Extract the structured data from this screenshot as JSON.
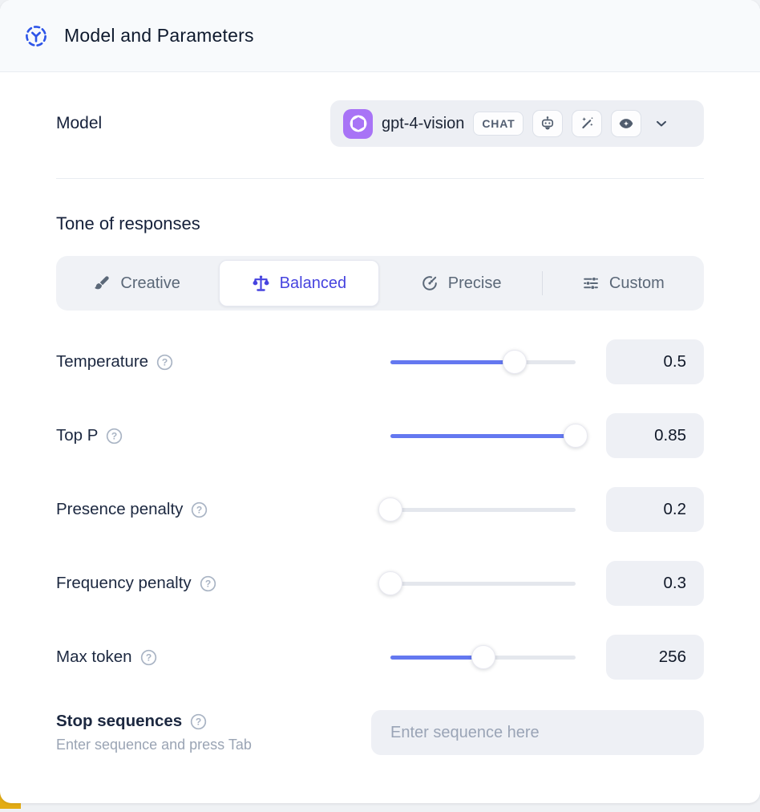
{
  "header": {
    "title": "Model and Parameters"
  },
  "model_row": {
    "label": "Model",
    "selected_model": "gpt-4-vision",
    "type_badge": "CHAT",
    "capability_icons": [
      "robot-icon",
      "magic-wand-icon",
      "eye-icon"
    ]
  },
  "tone": {
    "heading": "Tone of responses",
    "tabs": [
      {
        "label": "Creative",
        "icon": "paintbrush-icon",
        "selected": false
      },
      {
        "label": "Balanced",
        "icon": "balance-scale-icon",
        "selected": true
      },
      {
        "label": "Precise",
        "icon": "target-arrow-icon",
        "selected": false
      },
      {
        "label": "Custom",
        "icon": "sliders-icon",
        "selected": false
      }
    ]
  },
  "parameters": [
    {
      "label": "Temperature",
      "value": "0.5",
      "fill_pct": 67
    },
    {
      "label": "Top P",
      "value": "0.85",
      "fill_pct": 100
    },
    {
      "label": "Presence penalty",
      "value": "0.2",
      "fill_pct": 0
    },
    {
      "label": "Frequency penalty",
      "value": "0.3",
      "fill_pct": 0
    },
    {
      "label": "Max token",
      "value": "256",
      "fill_pct": 50
    }
  ],
  "stop_sequences": {
    "label": "Stop sequences",
    "hint": "Enter sequence and press Tab",
    "placeholder": "Enter sequence here"
  },
  "colors": {
    "slider_accent": "#6478f0",
    "selected_tab_indigo": "#4643df",
    "model_logo_purple": "#a873f6",
    "header_icon_blue": "#2e55e8",
    "control_bg": "#eef0f5",
    "corner_accent_yellow": "#e3ac14"
  }
}
